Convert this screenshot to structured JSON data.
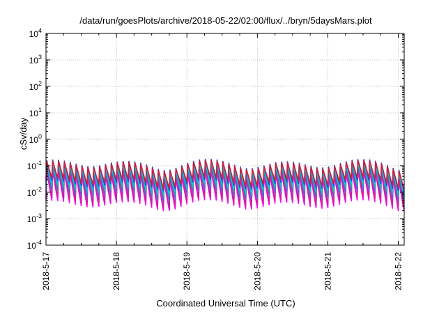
{
  "chart_data": {
    "type": "line",
    "title": "/data/run/goesPlots/archive/2018-05-22/02:00/flux/../bryn/5daysMars.plot",
    "xlabel": "Coordinated Universal Time (UTC)",
    "ylabel": "cSv/day",
    "yscale": "log",
    "ylim": [
      0.0001,
      10000
    ],
    "xlim": [
      "2018-5-17",
      "2018-5-22 02:00"
    ],
    "grid": true,
    "y_ticks": [
      {
        "base": "10",
        "exp": "-4",
        "value": 0.0001
      },
      {
        "base": "10",
        "exp": "-3",
        "value": 0.001
      },
      {
        "base": "10",
        "exp": "-2",
        "value": 0.01
      },
      {
        "base": "10",
        "exp": "-1",
        "value": 0.1
      },
      {
        "base": "10",
        "exp": "0",
        "value": 1
      },
      {
        "base": "10",
        "exp": "1",
        "value": 10
      },
      {
        "base": "10",
        "exp": "2",
        "value": 100
      },
      {
        "base": "10",
        "exp": "3",
        "value": 1000
      },
      {
        "base": "10",
        "exp": "4",
        "value": 10000
      }
    ],
    "x_ticks": [
      "2018-5-17",
      "2018-5-18",
      "2018-5-19",
      "2018-5-20",
      "2018-5-21",
      "2018-5-22"
    ],
    "pattern": {
      "description_free": true,
      "period_hours": 2,
      "peak_y": [
        0.03,
        0.05,
        0.08,
        0.1,
        0.12
      ],
      "trough_y": [
        0.003,
        0.005,
        0.008,
        0.012,
        0.02
      ]
    },
    "series": [
      {
        "color": "#ff00ff",
        "peak": 0.045,
        "trough": 0.0035
      },
      {
        "color": "#cc2299",
        "peak": 0.06,
        "trough": 0.0045
      },
      {
        "color": "#6a5acd",
        "peak": 0.075,
        "trough": 0.008
      },
      {
        "color": "#20b2aa",
        "peak": 0.09,
        "trough": 0.012
      },
      {
        "color": "#00ced1",
        "peak": 0.1,
        "trough": 0.016
      },
      {
        "color": "#1e4fd8",
        "peak": 0.12,
        "trough": 0.02
      },
      {
        "color": "#d21e3c",
        "peak": 0.11,
        "trough": 0.025
      }
    ]
  }
}
